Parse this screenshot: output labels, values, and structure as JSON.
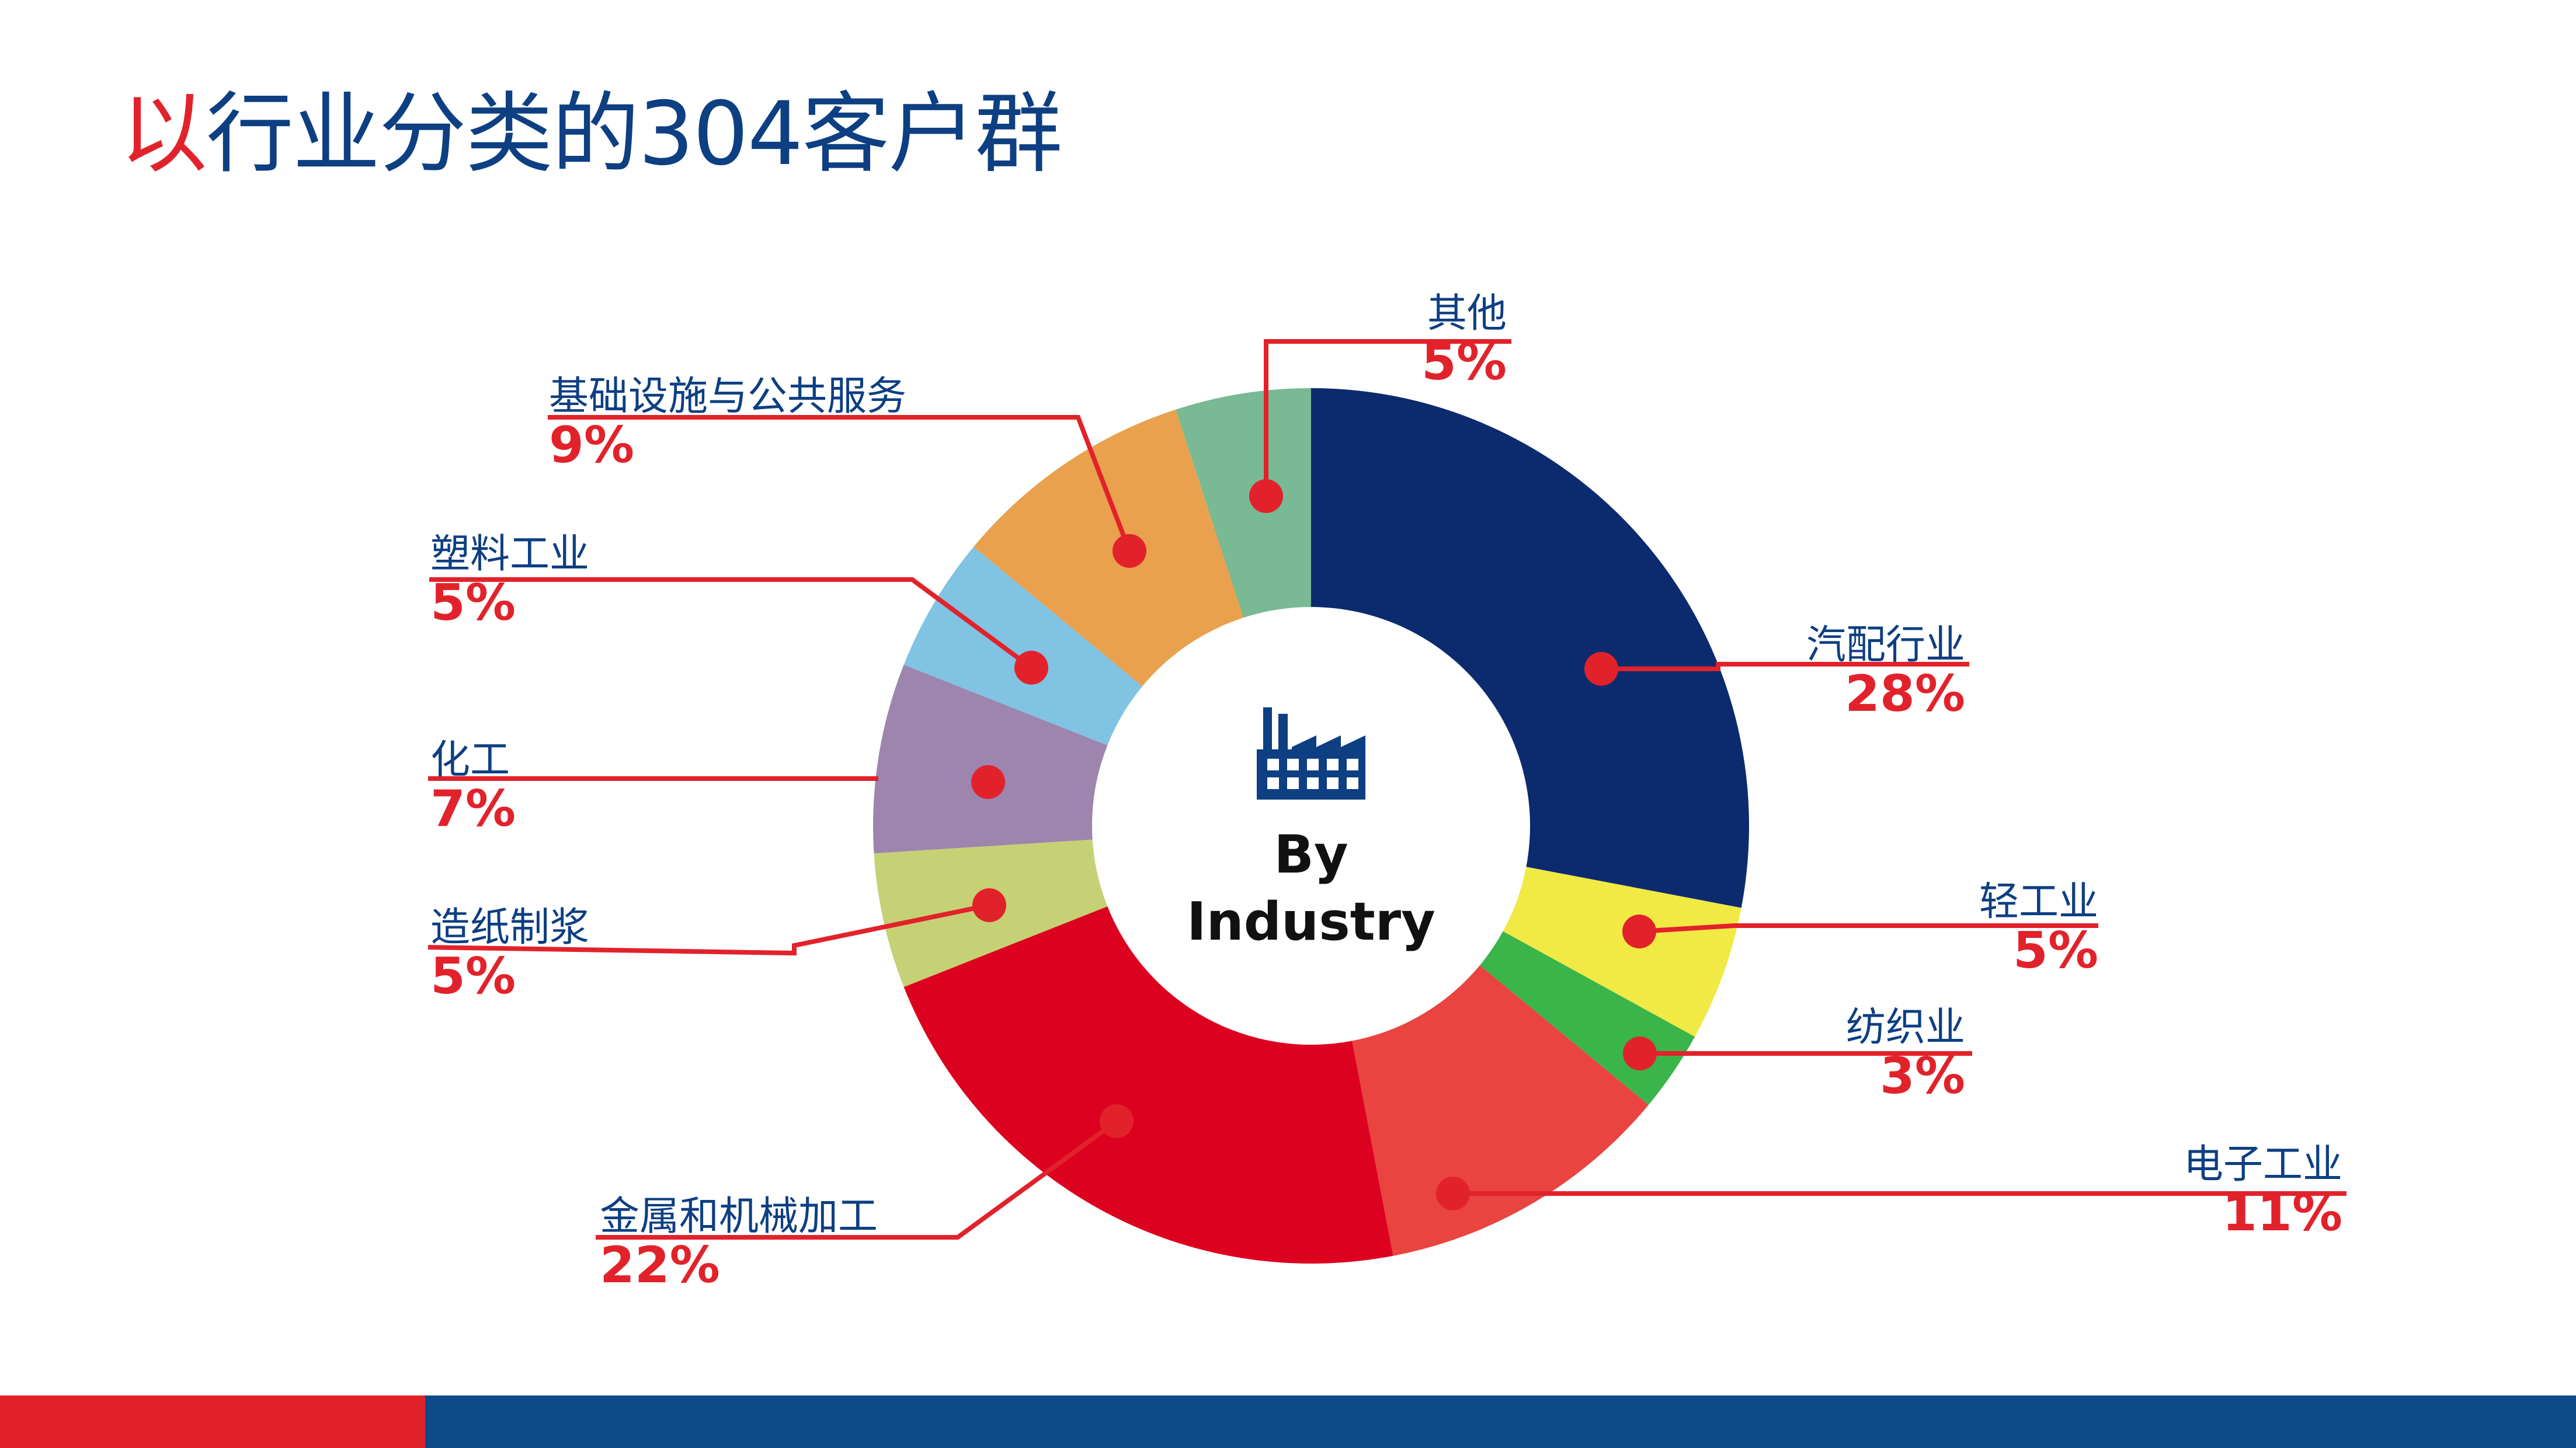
{
  "title": {
    "first_char": "以",
    "rest": "行业分类的304客户群"
  },
  "center": {
    "line1": "By",
    "line2": "Industry",
    "icon": "factory-icon"
  },
  "colors": {
    "title_blue": "#0d3f82",
    "accent_red": "#e2222b",
    "footer_blue": "#0d4a8a",
    "label_text": "#0d3f82",
    "leader_red": "#e2222b"
  },
  "chart_data": {
    "type": "pie",
    "donut": true,
    "slices": [
      {
        "label": "汽配行业",
        "value": 28,
        "display": "28%",
        "color": "#0c2b6e"
      },
      {
        "label": "轻工业",
        "value": 5,
        "display": "5%",
        "color": "#f1e944"
      },
      {
        "label": "纺织业",
        "value": 3,
        "display": "3%",
        "color": "#3ab54a"
      },
      {
        "label": "电子工业",
        "value": 11,
        "display": "11%",
        "color": "#e94440"
      },
      {
        "label": "金属和机械加工",
        "value": 22,
        "display": "22%",
        "color": "#dd0120"
      },
      {
        "label": "造纸制浆",
        "value": 5,
        "display": "5%",
        "color": "#c5d174"
      },
      {
        "label": "化工",
        "value": 7,
        "display": "7%",
        "color": "#9d85ae"
      },
      {
        "label": "塑料工业",
        "value": 5,
        "display": "5%",
        "color": "#80c3e3"
      },
      {
        "label": "基础设施与公共服务",
        "value": 9,
        "display": "9%",
        "color": "#e9a14d"
      },
      {
        "label": "其他",
        "value": 5,
        "display": "5%",
        "color": "#79b993"
      }
    ]
  }
}
